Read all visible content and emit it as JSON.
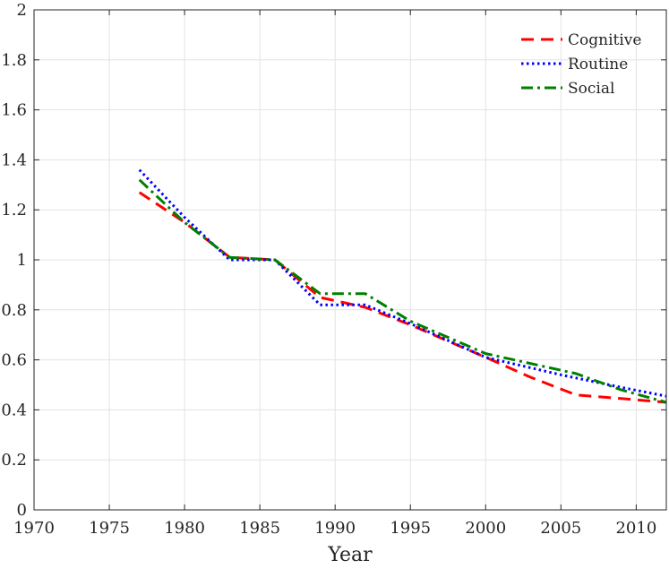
{
  "chart_data": {
    "type": "line",
    "title": "",
    "xlabel": "Year",
    "ylabel": "",
    "xlim": [
      1970,
      2012
    ],
    "ylim": [
      0,
      2
    ],
    "grid": true,
    "legend_position": "top-right",
    "xticks": [
      1970,
      1975,
      1980,
      1985,
      1990,
      1995,
      2000,
      2005,
      2010
    ],
    "xtick_labels": [
      "1970",
      "1975",
      "1980",
      "1985",
      "1990",
      "1995",
      "2000",
      "2005",
      "2010"
    ],
    "yticks": [
      0,
      0.2,
      0.4,
      0.6,
      0.8,
      1,
      1.2,
      1.4,
      1.6,
      1.8,
      2
    ],
    "ytick_labels": [
      "0",
      "0.2",
      "0.4",
      "0.6",
      "0.8",
      "1",
      "1.2",
      "1.4",
      "1.6",
      "1.8",
      "2"
    ],
    "series": [
      {
        "name": "Cognitive",
        "color": "#ff0000",
        "dash": "dashed",
        "x": [
          1977,
          1980,
          1983,
          1986,
          1989,
          1992,
          1995,
          2000,
          2003,
          2006,
          2009,
          2012
        ],
        "y": [
          1.27,
          1.15,
          1.01,
          1.0,
          0.85,
          0.81,
          0.74,
          0.61,
          0.53,
          0.46,
          0.445,
          0.43
        ]
      },
      {
        "name": "Routine",
        "color": "#0000ff",
        "dash": "dotted",
        "x": [
          1977,
          1980,
          1983,
          1986,
          1989,
          1992,
          1995,
          2000,
          2005,
          2009,
          2012
        ],
        "y": [
          1.36,
          1.17,
          1.0,
          1.0,
          0.82,
          0.82,
          0.745,
          0.61,
          0.54,
          0.49,
          0.455
        ]
      },
      {
        "name": "Social",
        "color": "#008000",
        "dash": "dashdot",
        "x": [
          1977,
          1980,
          1983,
          1986,
          1989,
          1992,
          1995,
          2000,
          2006,
          2009,
          2012
        ],
        "y": [
          1.32,
          1.15,
          1.01,
          1.0,
          0.865,
          0.865,
          0.755,
          0.625,
          0.545,
          0.48,
          0.43
        ]
      }
    ]
  }
}
